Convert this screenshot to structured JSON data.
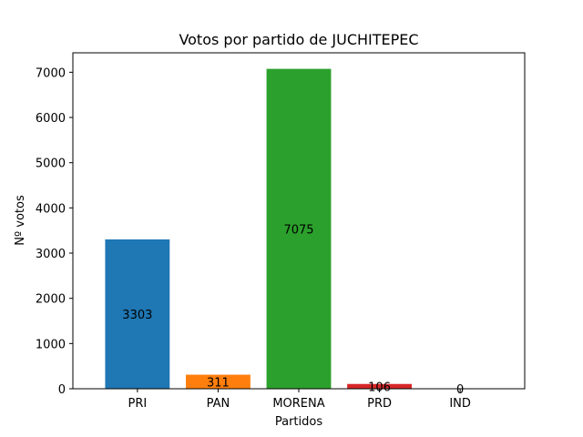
{
  "chart_data": {
    "type": "bar",
    "title": "Votos por partido de JUCHITEPEC",
    "xlabel": "Partidos",
    "ylabel": "Nº votos",
    "categories": [
      "PRI",
      "PAN",
      "MORENA",
      "PRD",
      "IND"
    ],
    "values": [
      3303,
      311,
      7075,
      106,
      0
    ],
    "data_labels": [
      "3303",
      "311",
      "7075",
      "106",
      "0"
    ],
    "colors": [
      "#1f77b4",
      "#ff7f0e",
      "#2ca02c",
      "#d62728",
      "#9467bd"
    ],
    "ylim": [
      0,
      7430
    ],
    "yticks": [
      0,
      1000,
      2000,
      3000,
      4000,
      5000,
      6000,
      7000
    ],
    "ytick_labels": [
      "0",
      "1000",
      "2000",
      "3000",
      "4000",
      "5000",
      "6000",
      "7000"
    ],
    "grid": false,
    "legend": "none"
  }
}
